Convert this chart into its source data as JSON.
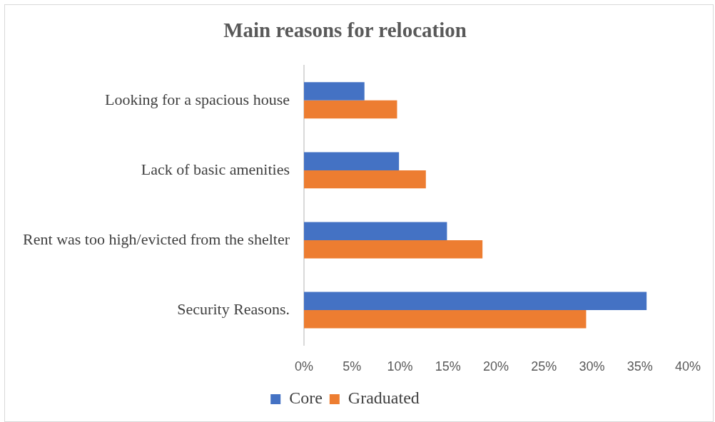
{
  "chart_data": {
    "type": "bar",
    "title": "Main reasons for relocation",
    "orientation": "horizontal",
    "categories": [
      "Looking for a spacious house",
      "Lack of basic amenities",
      "Rent was too high/evicted from the shelter",
      "Security Reasons."
    ],
    "series": [
      {
        "name": "Core",
        "color": "#4472c4",
        "values": [
          6.3,
          9.9,
          14.9,
          35.7
        ]
      },
      {
        "name": "Graduated",
        "color": "#ed7d31",
        "values": [
          9.7,
          12.7,
          18.6,
          29.4
        ]
      }
    ],
    "xlim": [
      0,
      40
    ],
    "xticks": [
      {
        "value": 0,
        "label": "0%"
      },
      {
        "value": 5,
        "label": "5%"
      },
      {
        "value": 10,
        "label": "10%"
      },
      {
        "value": 15,
        "label": "15%"
      },
      {
        "value": 20,
        "label": "20%"
      },
      {
        "value": 25,
        "label": "25%"
      },
      {
        "value": 30,
        "label": "30%"
      },
      {
        "value": 35,
        "label": "35%"
      },
      {
        "value": 40,
        "label": "40%"
      }
    ],
    "legend": "bottom"
  }
}
